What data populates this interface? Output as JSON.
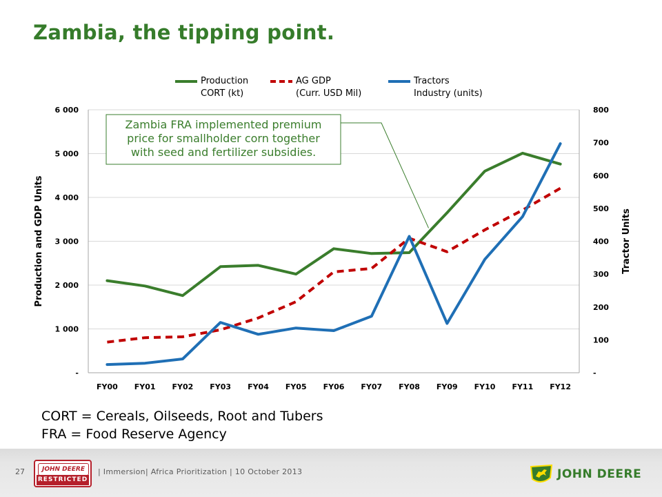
{
  "slide": {
    "title": "Zambia, the tipping point.",
    "definitions": [
      "CORT = Cereals, Oilseeds, Root and Tubers",
      "FRA = Food Reserve Agency"
    ]
  },
  "footer": {
    "page_number": "27",
    "restricted_badge_top": "JOHN DEERE",
    "restricted_badge_bottom": "RESTRICTED",
    "text": "| Immersion| Africa Prioritization | 10 October 2013",
    "logo_text": "JOHN DEERE"
  },
  "colors": {
    "title": "#367C2B",
    "production": "#3A7D2C",
    "ag_gdp": "#C00000",
    "tractors": "#1F6FB5",
    "gridline": "#D9D9D9",
    "callout_border": "#3A7D2C"
  },
  "chart_data": {
    "type": "line",
    "categories": [
      "FY00",
      "FY01",
      "FY02",
      "FY03",
      "FY04",
      "FY05",
      "FY06",
      "FY07",
      "FY08",
      "FY09",
      "FY10",
      "FY11",
      "FY12"
    ],
    "y_left": {
      "label": "Production and GDP Units",
      "range": [
        0,
        6000
      ],
      "ticks": [
        0,
        1000,
        2000,
        3000,
        4000,
        5000,
        6000
      ],
      "tick_labels": [
        "-",
        "1 000",
        "2 000",
        "3 000",
        "4 000",
        "5 000",
        "6 000"
      ]
    },
    "y_right": {
      "label": "Tractor Units",
      "range": [
        0,
        800
      ],
      "ticks": [
        0,
        100,
        200,
        300,
        400,
        500,
        600,
        700,
        800
      ],
      "tick_labels": [
        "-",
        "100",
        "200",
        "300",
        "400",
        "500",
        "600",
        "700",
        "800"
      ]
    },
    "series": [
      {
        "key": "production",
        "name_line1": "Production",
        "name_line2": "CORT (kt)",
        "axis": "left",
        "style": "solid",
        "values": [
          2100,
          1980,
          1760,
          2420,
          2450,
          2250,
          2830,
          2720,
          2740,
          3650,
          4600,
          5010,
          4760
        ]
      },
      {
        "key": "ag_gdp",
        "name_line1": "AG GDP",
        "name_line2": "(Curr. USD Mil)",
        "axis": "left",
        "style": "dashed",
        "values": [
          700,
          800,
          820,
          980,
          1250,
          1620,
          2300,
          2380,
          3070,
          2760,
          3260,
          3710,
          4210
        ]
      },
      {
        "key": "tractors",
        "name_line1": "Tractors",
        "name_line2": "Industry (units)",
        "axis": "right",
        "style": "solid",
        "values": [
          25,
          29,
          42,
          153,
          117,
          136,
          128,
          172,
          415,
          150,
          345,
          475,
          697
        ]
      }
    ],
    "legend_position": "top",
    "gridlines": true,
    "annotation": {
      "lines": [
        "Zambia FRA implemented premium",
        "price for smallholder corn together",
        "with seed and fertilizer subsidies."
      ],
      "points_to": "FY08"
    }
  }
}
